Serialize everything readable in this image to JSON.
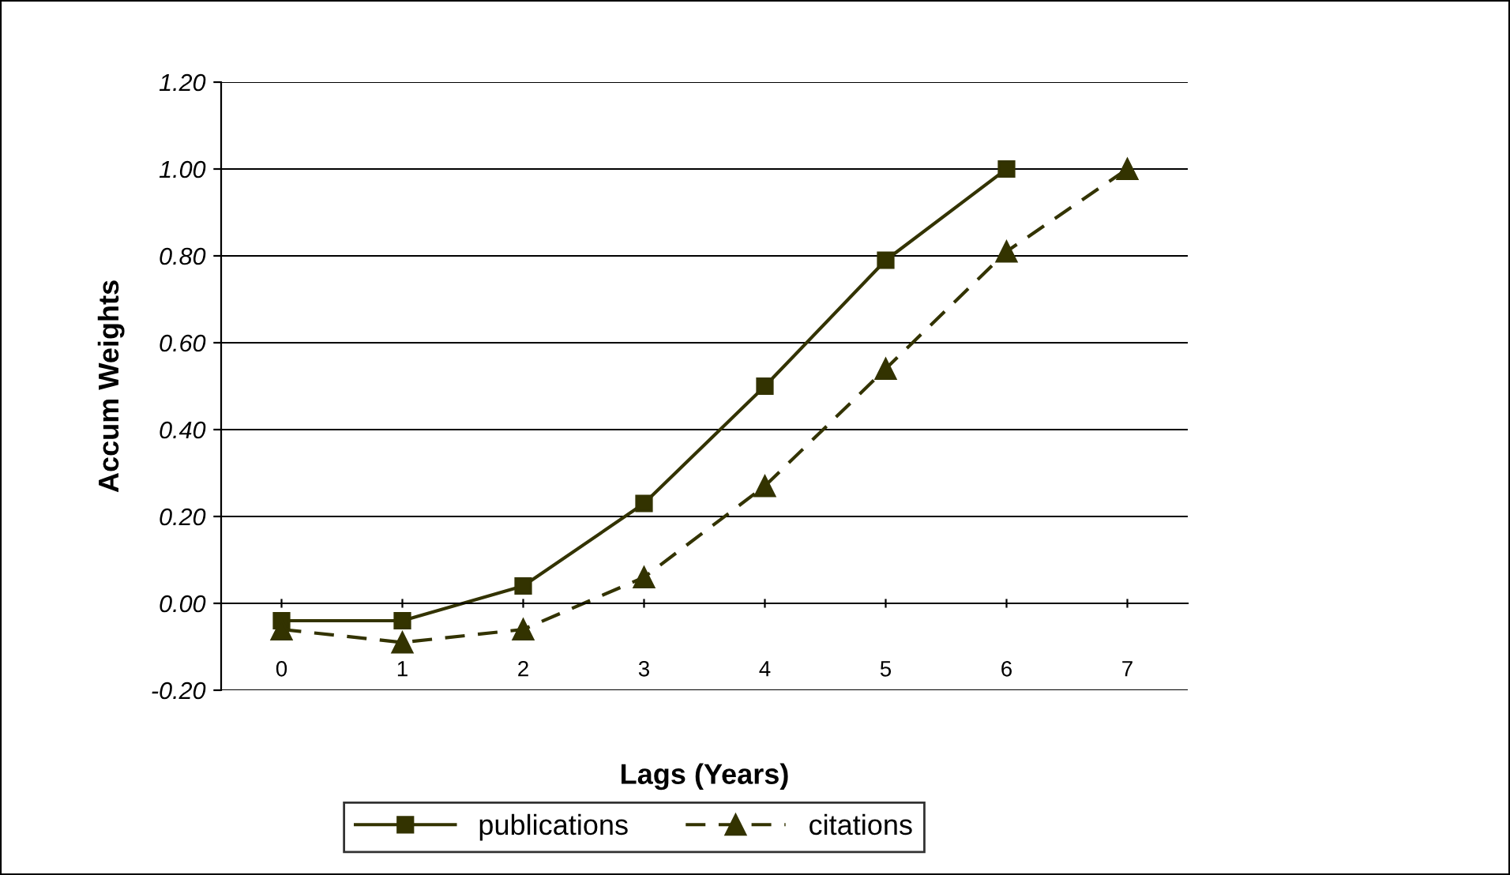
{
  "chart_data": {
    "type": "line",
    "xlabel": "Lags (Years)",
    "ylabel": "Accum Weights",
    "categories": [
      "0",
      "1",
      "2",
      "3",
      "4",
      "5",
      "6",
      "7"
    ],
    "series": [
      {
        "name": "publications",
        "color": "#333300",
        "marker": "square",
        "line_style": "solid",
        "values": [
          -0.04,
          -0.04,
          0.04,
          0.23,
          0.5,
          0.79,
          1.0,
          null
        ]
      },
      {
        "name": "citations",
        "color": "#333300",
        "marker": "triangle",
        "line_style": "dashed",
        "values": [
          -0.06,
          -0.09,
          -0.06,
          0.06,
          0.27,
          0.54,
          0.81,
          1.0
        ]
      }
    ],
    "ylim": [
      -0.2,
      1.2
    ],
    "yticks": [
      {
        "value": -0.2,
        "label": "-0.20"
      },
      {
        "value": 0,
        "label": "0.00"
      },
      {
        "value": 0.2,
        "label": "0.20"
      },
      {
        "value": 0.4,
        "label": "0.40"
      },
      {
        "value": 0.6,
        "label": "0.60"
      },
      {
        "value": 0.8,
        "label": "0.80"
      },
      {
        "value": 1.0,
        "label": "1.00"
      },
      {
        "value": 1.2,
        "label": "1.20"
      }
    ],
    "grid": "y",
    "legend": "bottom"
  }
}
